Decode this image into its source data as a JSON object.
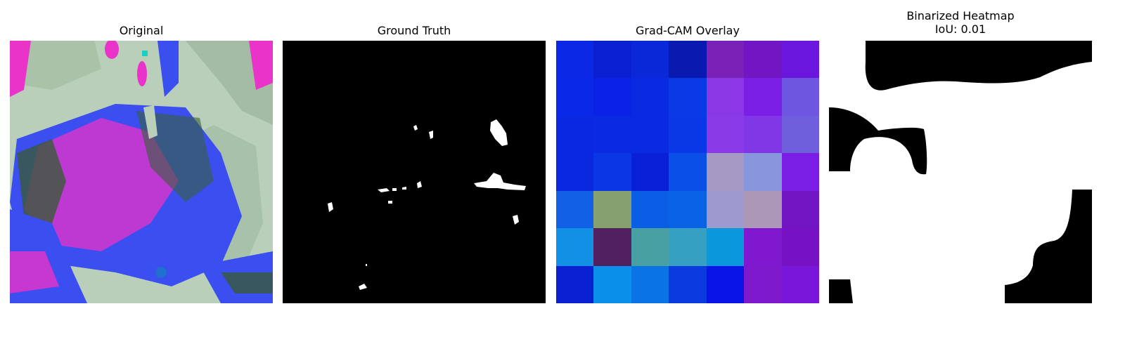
{
  "panels": [
    {
      "title": "Original"
    },
    {
      "title": "Ground Truth"
    },
    {
      "title": "Grad-CAM Overlay"
    },
    {
      "title": "Binarized Heatmap\nIoU: 0.01"
    }
  ],
  "colors": {
    "leaf_blue": "#3b4ef0",
    "leaf_magenta": "#ea33c8",
    "background_sage": "#b7cdb8",
    "dark_green": "#3a5a3a",
    "mask_black": "#000000",
    "mask_white": "#ffffff"
  },
  "gradcam_cells": [
    [
      "#0a28e6",
      "#0a1fd0",
      "#0a28d8",
      "#0a1ab0",
      "#7a22b8",
      "#7216c4",
      "#6a16dc"
    ],
    [
      "#0a28e8",
      "#0a22e6",
      "#0a2ae2",
      "#0a3ae6",
      "#8a38e6",
      "#7a1ee6",
      "#6e56e0"
    ],
    [
      "#0a28e2",
      "#0a2ae2",
      "#0a2ae2",
      "#0a38e6",
      "#8a3ae6",
      "#8038e6",
      "#6e60dc"
    ],
    [
      "#0a28e0",
      "#0a36e6",
      "#0a20d8",
      "#0a50e6",
      "#a69ac4",
      "#8896dc",
      "#7a1ee6"
    ],
    [
      "#1260e6",
      "#86a070",
      "#0a5ee6",
      "#0a62e6",
      "#9c9ace",
      "#aa98b6",
      "#7216c4"
    ],
    [
      "#1290e6",
      "#502060",
      "#48a0a2",
      "#36a0c2",
      "#0a98da",
      "#8018d0",
      "#7612c4"
    ],
    [
      "#0a20d0",
      "#0a90ea",
      "#0a74e6",
      "#0a3ae0",
      "#0a14e6",
      "#7e1acc",
      "#7a16da"
    ]
  ]
}
